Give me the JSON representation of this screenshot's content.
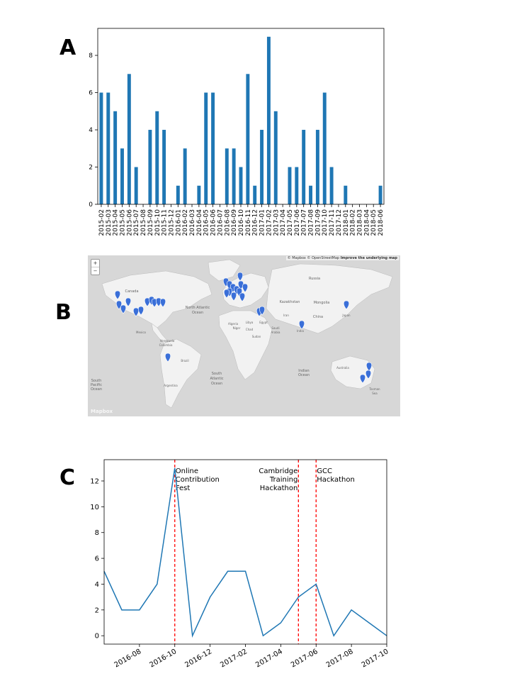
{
  "panel_letters": {
    "a": "A",
    "b": "B",
    "c": "C"
  },
  "chart_data": [
    {
      "type": "bar",
      "categories": [
        "2015-02",
        "2015-03",
        "2015-04",
        "2015-05",
        "2015-06",
        "2015-07",
        "2015-08",
        "2015-09",
        "2015-10",
        "2015-11",
        "2015-12",
        "2016-01",
        "2016-02",
        "2016-03",
        "2016-04",
        "2016-05",
        "2016-06",
        "2016-07",
        "2016-08",
        "2016-09",
        "2016-10",
        "2016-11",
        "2016-12",
        "2017-01",
        "2017-02",
        "2017-03",
        "2017-04",
        "2017-05",
        "2017-06",
        "2017-07",
        "2017-08",
        "2017-09",
        "2017-10",
        "2017-11",
        "2017-12",
        "2018-01",
        "2018-02",
        "2018-03",
        "2018-04",
        "2018-05",
        "2018-06"
      ],
      "values": [
        6,
        6,
        5,
        3,
        7,
        2,
        0,
        4,
        5,
        4,
        0,
        1,
        3,
        0,
        1,
        6,
        6,
        0,
        3,
        3,
        2,
        7,
        1,
        4,
        9,
        5,
        0,
        2,
        2,
        4,
        1,
        4,
        6,
        2,
        0,
        1,
        0,
        0,
        0,
        0,
        1
      ],
      "yticks": [
        "0",
        "2",
        "4",
        "6",
        "8"
      ],
      "ylim": [
        0,
        9.45
      ],
      "color": "#1f77b4",
      "grid": false
    },
    {
      "type": "line",
      "x": [
        "2016-06",
        "2016-07",
        "2016-08",
        "2016-09",
        "2016-10",
        "2016-11",
        "2016-12",
        "2017-01",
        "2017-02",
        "2017-03",
        "2017-04",
        "2017-05",
        "2017-06",
        "2017-07",
        "2017-08",
        "2017-09",
        "2017-10"
      ],
      "values": [
        5,
        2,
        2,
        4,
        13,
        0,
        3,
        5,
        5,
        0,
        1,
        3,
        4,
        0,
        2,
        1,
        0
      ],
      "xticks": [
        "2016-08",
        "2016-10",
        "2016-12",
        "2017-02",
        "2017-04",
        "2017-06",
        "2017-08",
        "2017-10"
      ],
      "yticks": [
        "0",
        "2",
        "4",
        "6",
        "8",
        "10",
        "12"
      ],
      "ylim": [
        -0.65,
        13.65
      ],
      "color": "#1f77b4",
      "event_color": "#ff0000",
      "events": [
        {
          "x": "2016-10",
          "lines": [
            "Online",
            "Contribution",
            "Fest"
          ],
          "align": "start"
        },
        {
          "x": "2017-05",
          "lines": [
            "Cambridge",
            "Training",
            "Hackathon"
          ],
          "align": "end"
        },
        {
          "x": "2017-06",
          "lines": [
            "GCC",
            "Hackathon"
          ],
          "align": "start"
        }
      ],
      "grid": false
    }
  ],
  "map": {
    "attribution": "© Mapbox © OpenStreetMap",
    "improve_link": "Improve the underlying map",
    "zoom_in": "+",
    "zoom_out": "−",
    "logo": "Mapbox",
    "land_color": "#f2f2f2",
    "water_color": "#d7d7d7",
    "marker_color": "#3a6fd8",
    "labels": [
      {
        "text": "Canada"
      },
      {
        "text": "Mexico"
      },
      {
        "text": "Venezuela"
      },
      {
        "text": "Colombia"
      },
      {
        "text": "Brazil"
      },
      {
        "text": "Argentina"
      },
      {
        "text": "North Atlantic"
      },
      {
        "text": "Ocean"
      },
      {
        "text": "South"
      },
      {
        "text": "Atlantic"
      },
      {
        "text": "Ocean"
      },
      {
        "text": "South"
      },
      {
        "text": "Pacific"
      },
      {
        "text": "Ocean"
      },
      {
        "text": "Algeria"
      },
      {
        "text": "Libya"
      },
      {
        "text": "Egypt"
      },
      {
        "text": "Sudan"
      },
      {
        "text": "Saudi"
      },
      {
        "text": "Arabia"
      },
      {
        "text": "Iran"
      },
      {
        "text": "Kazakhstan"
      },
      {
        "text": "Mongolia"
      },
      {
        "text": "China"
      },
      {
        "text": "Russia"
      },
      {
        "text": "India"
      },
      {
        "text": "Indian"
      },
      {
        "text": "Ocean"
      },
      {
        "text": "Australia"
      },
      {
        "text": "Japan"
      },
      {
        "text": "Niger"
      },
      {
        "text": "Chad"
      },
      {
        "text": "Tasman"
      },
      {
        "text": "Sea"
      }
    ]
  }
}
